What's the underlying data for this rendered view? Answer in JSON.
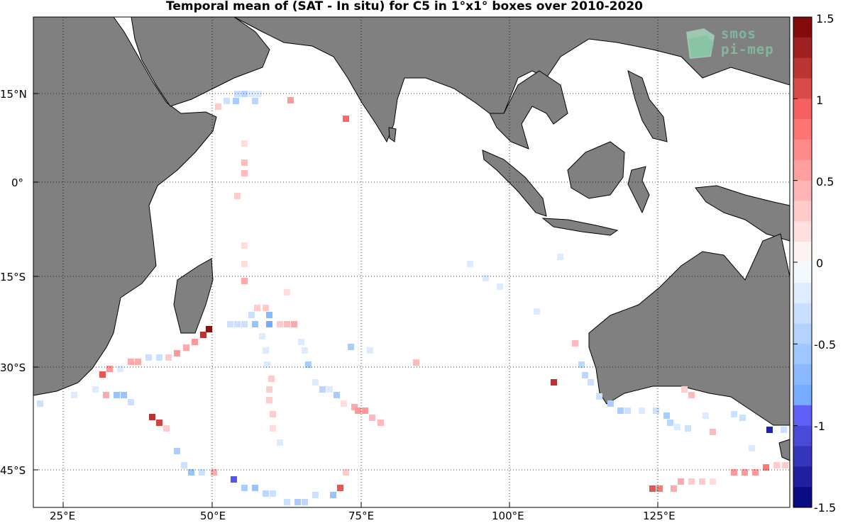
{
  "title": "Temporal mean of (SAT - In situ) for C5 in 1°x1° boxes over 2010-2020",
  "lon_labels": [
    "25°E",
    "50°E",
    "75°E",
    "100°E",
    "125°E"
  ],
  "lat_labels": [
    "15°N",
    "0°",
    "15°S",
    "30°S",
    "45°S"
  ],
  "colorbar": {
    "labels": [
      "1.5",
      "1",
      "0.5",
      "0",
      "-0.5",
      "-1",
      "-1.5"
    ],
    "range": [
      -1.5,
      1.5
    ],
    "steps": 24,
    "colors": {
      "land": "#808080",
      "ocean": "#ffffff",
      "grid": "#000000"
    }
  },
  "logo": {
    "line1": "smos",
    "line2": "pi-mep"
  }
}
